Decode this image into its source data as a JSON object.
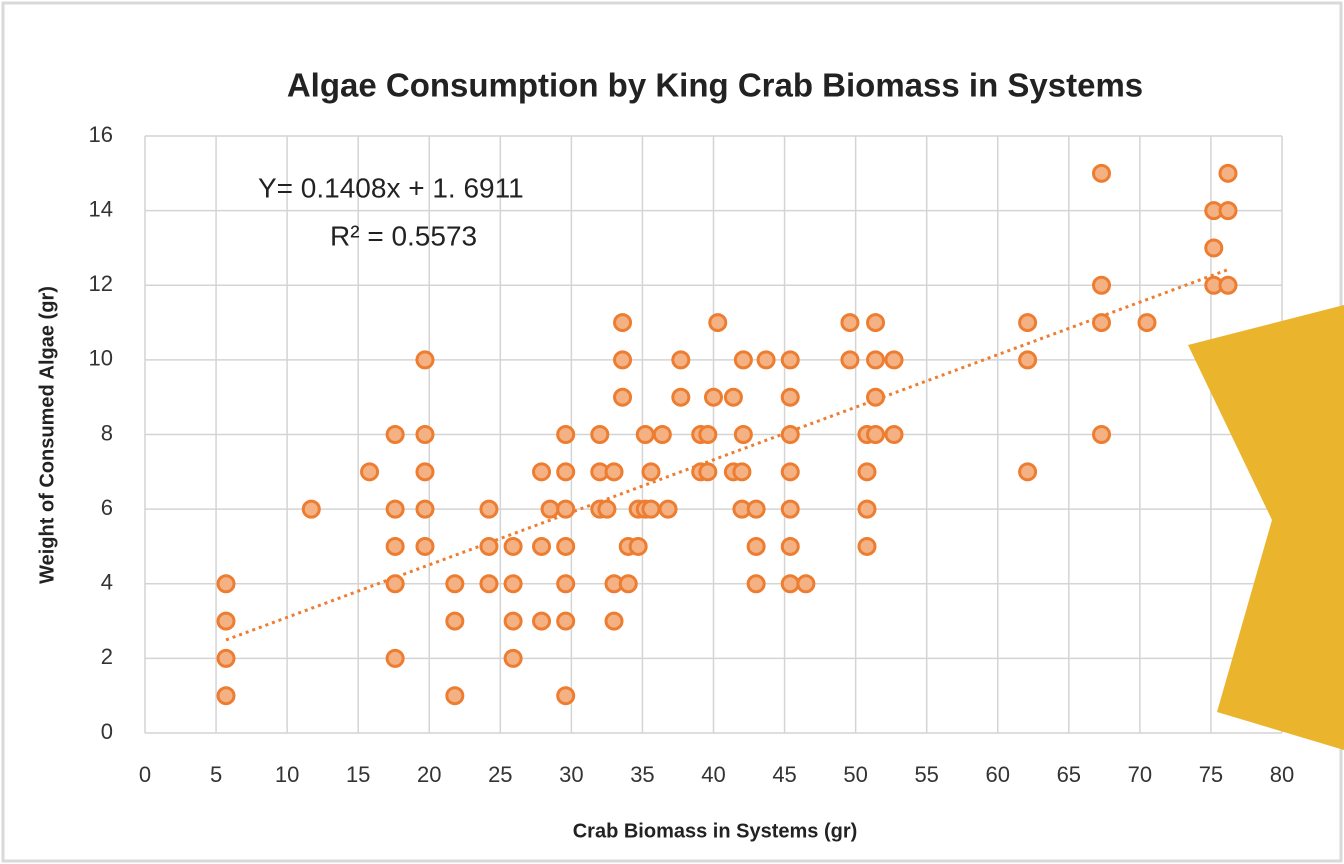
{
  "chart_data": {
    "type": "scatter",
    "title": "Algae Consumption by King Crab Biomass in Systems",
    "x_label": "Crab Biomass in Systems (gr)",
    "y_label": "Weight of Consumed Algae (gr)",
    "annotations": [
      "Y= 0.1408x + 1. 6911",
      "R² = 0.5573"
    ],
    "trendline": {
      "slope": 0.1408,
      "intercept": 1.6911
    },
    "color": "#ed7d31",
    "fill": "#f4b183",
    "xlim": [
      0,
      80
    ],
    "xticks": [
      0,
      5,
      10,
      15,
      20,
      25,
      30,
      35,
      40,
      45,
      50,
      55,
      60,
      65,
      70,
      75,
      80
    ],
    "ylim": [
      0,
      16
    ],
    "yticks": [
      0,
      2,
      4,
      6,
      8,
      10,
      12,
      14,
      16
    ],
    "grid": true,
    "x": [
      5.7,
      5.7,
      5.7,
      5.7,
      11.7,
      15.8,
      17.6,
      17.6,
      17.6,
      17.6,
      17.6,
      19.7,
      19.7,
      19.7,
      19.7,
      19.7,
      21.8,
      21.8,
      21.8,
      24.2,
      24.2,
      24.2,
      25.9,
      25.9,
      25.9,
      25.9,
      27.9,
      27.9,
      27.9,
      28.5,
      29.6,
      29.6,
      29.6,
      29.6,
      29.6,
      29.6,
      29.6,
      32.0,
      32.0,
      32.0,
      32.5,
      33.0,
      33.0,
      33.0,
      33.6,
      33.6,
      33.6,
      34.0,
      34.0,
      34.7,
      34.7,
      35.2,
      35.2,
      35.6,
      35.6,
      36.4,
      36.8,
      37.7,
      37.7,
      39.1,
      39.1,
      39.6,
      39.6,
      40.0,
      40.3,
      41.4,
      41.4,
      42.0,
      42.0,
      42.1,
      42.1,
      43.0,
      43.0,
      43.0,
      43.7,
      45.4,
      45.4,
      45.4,
      45.4,
      45.4,
      45.4,
      45.4,
      46.5,
      49.6,
      49.6,
      50.8,
      50.8,
      50.8,
      50.8,
      51.4,
      51.4,
      51.4,
      51.4,
      52.7,
      52.7,
      62.1,
      62.1,
      62.1,
      67.3,
      67.3,
      67.3,
      67.3,
      70.5,
      75.2,
      75.2,
      75.2,
      75.2,
      76.2,
      76.2,
      76.2
    ],
    "y": [
      4,
      3,
      2,
      1,
      6,
      7,
      8,
      6,
      5,
      4,
      2,
      10,
      8,
      7,
      6,
      5,
      4,
      3,
      1,
      6,
      5,
      4,
      5,
      4,
      3,
      2,
      7,
      5,
      3,
      6,
      8,
      7,
      6,
      5,
      4,
      3,
      1,
      8,
      7,
      6,
      6,
      7,
      4,
      3,
      11,
      10,
      9,
      5,
      4,
      6,
      5,
      8,
      6,
      7,
      6,
      8,
      6,
      10,
      9,
      8,
      7,
      8,
      7,
      9,
      11,
      9,
      7,
      7,
      6,
      10,
      8,
      6,
      5,
      4,
      10,
      10,
      9,
      8,
      7,
      6,
      5,
      4,
      4,
      11,
      10,
      8,
      7,
      6,
      5,
      11,
      10,
      9,
      8,
      10,
      8,
      11,
      10,
      7,
      15,
      12,
      11,
      8,
      11,
      14,
      13,
      12,
      10,
      15,
      14,
      12
    ]
  }
}
